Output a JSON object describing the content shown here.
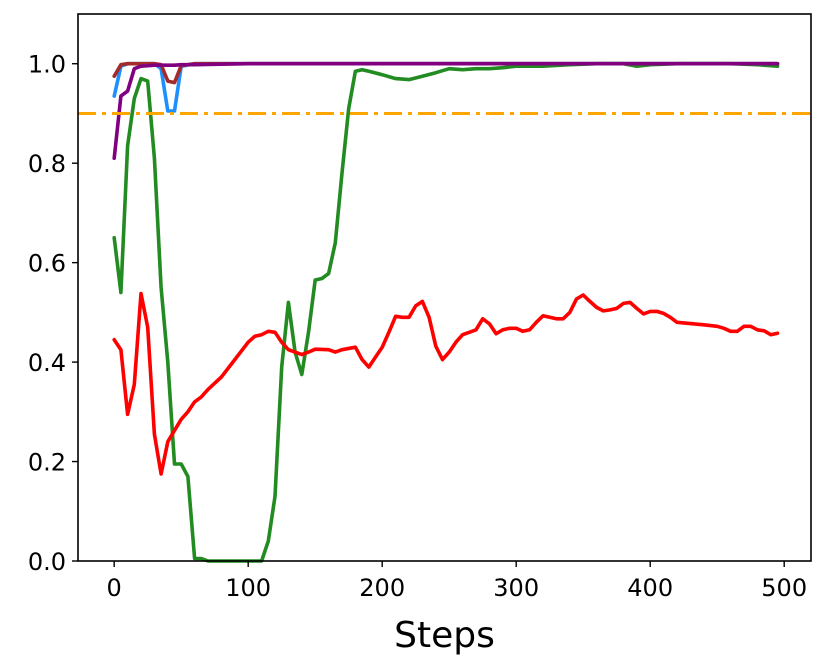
{
  "chart_data": {
    "type": "line",
    "title": "",
    "xlabel": "Steps",
    "ylabel": "",
    "xlim": [
      -27,
      520
    ],
    "ylim": [
      0.0,
      1.1
    ],
    "xticks": [
      0,
      100,
      200,
      300,
      400,
      500
    ],
    "yticks": [
      0.0,
      0.2,
      0.4,
      0.6,
      0.8,
      1.0
    ],
    "xtick_labels": [
      "0",
      "100",
      "200",
      "300",
      "400",
      "500"
    ],
    "ytick_labels": [
      "0.0",
      "0.2",
      "0.4",
      "0.6",
      "0.8",
      "1.0"
    ],
    "grid": false,
    "legend": "none",
    "hlines": [
      {
        "y": 0.9,
        "color": "#FFA500",
        "style": "dashdot"
      }
    ],
    "series": [
      {
        "color": "#1E8FFF",
        "x": [
          0,
          5,
          10,
          20,
          30,
          35,
          40,
          45,
          50,
          60,
          100,
          200,
          300,
          400,
          495
        ],
        "y": [
          0.935,
          0.995,
          1.0,
          1.0,
          1.0,
          0.99,
          0.905,
          0.905,
          0.995,
          1.0,
          1.0,
          1.0,
          1.0,
          1.0,
          1.0
        ]
      },
      {
        "color": "#A52A2A",
        "x": [
          0,
          5,
          10,
          20,
          30,
          35,
          40,
          45,
          50,
          60,
          100,
          200,
          300,
          400,
          495
        ],
        "y": [
          0.975,
          0.998,
          1.0,
          1.0,
          1.0,
          0.998,
          0.965,
          0.962,
          0.996,
          1.0,
          1.0,
          1.0,
          1.0,
          1.0,
          1.0
        ]
      },
      {
        "color": "#228B22",
        "x": [
          0,
          5,
          10,
          15,
          20,
          25,
          30,
          35,
          40,
          45,
          50,
          55,
          60,
          65,
          70,
          80,
          90,
          100,
          110,
          115,
          120,
          125,
          130,
          135,
          140,
          145,
          150,
          155,
          160,
          165,
          170,
          175,
          180,
          185,
          190,
          200,
          210,
          220,
          230,
          240,
          250,
          260,
          270,
          280,
          290,
          300,
          320,
          340,
          360,
          380,
          390,
          400,
          420,
          440,
          460,
          480,
          495
        ],
        "y": [
          0.65,
          0.54,
          0.835,
          0.93,
          0.97,
          0.965,
          0.81,
          0.55,
          0.4,
          0.195,
          0.195,
          0.17,
          0.005,
          0.005,
          0.0,
          0.0,
          0.0,
          0.0,
          0.0,
          0.04,
          0.13,
          0.39,
          0.52,
          0.42,
          0.375,
          0.46,
          0.565,
          0.568,
          0.578,
          0.64,
          0.78,
          0.91,
          0.985,
          0.988,
          0.985,
          0.978,
          0.97,
          0.968,
          0.975,
          0.982,
          0.99,
          0.988,
          0.99,
          0.99,
          0.992,
          0.995,
          0.995,
          0.998,
          1.0,
          1.0,
          0.995,
          0.998,
          1.0,
          1.0,
          1.0,
          0.998,
          0.995
        ]
      },
      {
        "color": "#FF0000",
        "x": [
          0,
          5,
          10,
          15,
          20,
          25,
          30,
          35,
          40,
          50,
          55,
          60,
          65,
          70,
          80,
          90,
          100,
          105,
          110,
          115,
          120,
          125,
          130,
          140,
          145,
          150,
          160,
          165,
          170,
          180,
          185,
          190,
          195,
          200,
          205,
          210,
          215,
          220,
          225,
          230,
          235,
          240,
          245,
          250,
          255,
          260,
          265,
          270,
          275,
          280,
          285,
          290,
          295,
          300,
          305,
          310,
          315,
          320,
          330,
          335,
          340,
          345,
          350,
          355,
          360,
          365,
          370,
          375,
          380,
          385,
          390,
          395,
          400,
          405,
          410,
          415,
          420,
          440,
          450,
          455,
          460,
          465,
          470,
          475,
          480,
          485,
          490,
          495
        ],
        "y": [
          0.445,
          0.425,
          0.295,
          0.355,
          0.538,
          0.47,
          0.255,
          0.175,
          0.24,
          0.285,
          0.3,
          0.32,
          0.33,
          0.345,
          0.37,
          0.405,
          0.44,
          0.452,
          0.455,
          0.462,
          0.46,
          0.44,
          0.425,
          0.415,
          0.42,
          0.426,
          0.425,
          0.42,
          0.425,
          0.43,
          0.405,
          0.39,
          0.41,
          0.43,
          0.46,
          0.492,
          0.49,
          0.49,
          0.513,
          0.522,
          0.49,
          0.432,
          0.405,
          0.42,
          0.44,
          0.455,
          0.46,
          0.465,
          0.487,
          0.477,
          0.457,
          0.465,
          0.468,
          0.468,
          0.462,
          0.465,
          0.48,
          0.493,
          0.487,
          0.487,
          0.5,
          0.527,
          0.535,
          0.522,
          0.51,
          0.503,
          0.505,
          0.508,
          0.518,
          0.52,
          0.508,
          0.497,
          0.502,
          0.502,
          0.498,
          0.49,
          0.48,
          0.475,
          0.472,
          0.468,
          0.462,
          0.462,
          0.472,
          0.472,
          0.465,
          0.463,
          0.455,
          0.458
        ]
      },
      {
        "color": "#800080",
        "x": [
          0,
          5,
          10,
          15,
          20,
          25,
          30,
          35,
          40,
          45,
          50,
          60,
          100,
          200,
          300,
          400,
          495
        ],
        "y": [
          0.81,
          0.935,
          0.945,
          0.99,
          0.995,
          0.996,
          0.997,
          0.997,
          0.997,
          0.997,
          0.998,
          0.998,
          1.0,
          1.0,
          1.0,
          1.0,
          1.0
        ]
      }
    ]
  }
}
